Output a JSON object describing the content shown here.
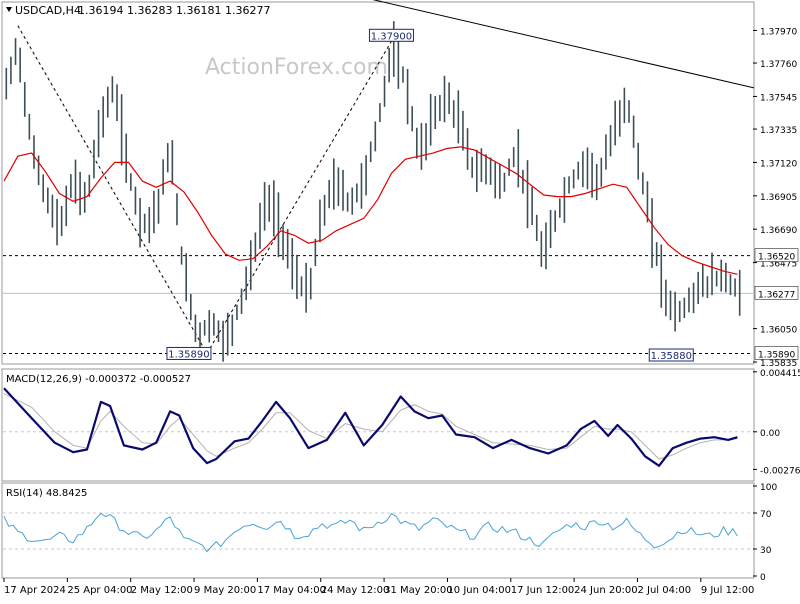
{
  "header": {
    "symbol_timeframe": "USDCAD,H4",
    "ohlc": "1.36194 1.36283 1.36181 1.36277",
    "watermark": "ActionForex.com"
  },
  "colors": {
    "candles": "#3d4f55",
    "moving_average": "#e00000",
    "macd_main": "#0a0a6e",
    "macd_signal": "#b8b0b0",
    "rsi_line": "#4aa3d8",
    "trendline": "#000000",
    "grid_dash": "#000000"
  },
  "chart_data": [
    {
      "type": "line",
      "name": "price",
      "title": "USDCAD,H4",
      "ylim": [
        1.35835,
        1.3805
      ],
      "y_ticks": [
        "1.37970",
        "1.37760",
        "1.37545",
        "1.37335",
        "1.37120",
        "1.36905",
        "1.36690",
        "1.36475",
        "1.36050",
        "1.35835"
      ],
      "x_ticks": [
        "17 Apr 2024",
        "25 Apr 04:00",
        "2 May 12:00",
        "9 May 20:00",
        "17 May 04:00",
        "24 May 12:00",
        "31 May 20:00",
        "10 Jun 04:00",
        "17 Jun 12:00",
        "24 Jun 20:00",
        "2 Jul 04:00",
        "9 Jul 12:00"
      ],
      "price_path": [
        [
          0,
          1.3755
        ],
        [
          3,
          1.3788
        ],
        [
          6,
          1.3722
        ],
        [
          9,
          1.3692
        ],
        [
          12,
          1.3668
        ],
        [
          15,
          1.37
        ],
        [
          18,
          1.3688
        ],
        [
          21,
          1.374
        ],
        [
          24,
          1.376
        ],
        [
          27,
          1.3705
        ],
        [
          30,
          1.3672
        ],
        [
          33,
          1.368
        ],
        [
          36,
          1.3722
        ],
        [
          39,
          1.364
        ],
        [
          42,
          1.36
        ],
        [
          45,
          1.361
        ],
        [
          48,
          1.3595
        ],
        [
          51,
          1.362
        ],
        [
          54,
          1.365
        ],
        [
          57,
          1.369
        ],
        [
          60,
          1.367
        ],
        [
          63,
          1.364
        ],
        [
          66,
          1.3625
        ],
        [
          69,
          1.368
        ],
        [
          72,
          1.37
        ],
        [
          75,
          1.3685
        ],
        [
          78,
          1.37
        ],
        [
          81,
          1.3735
        ],
        [
          84,
          1.3785
        ],
        [
          87,
          1.3765
        ],
        [
          90,
          1.3715
        ],
        [
          93,
          1.3742
        ],
        [
          96,
          1.3755
        ],
        [
          99,
          1.3735
        ],
        [
          102,
          1.3705
        ],
        [
          105,
          1.371
        ],
        [
          108,
          1.3695
        ],
        [
          111,
          1.372
        ],
        [
          114,
          1.3685
        ],
        [
          117,
          1.365
        ],
        [
          120,
          1.368
        ],
        [
          123,
          1.37
        ],
        [
          126,
          1.3712
        ],
        [
          129,
          1.37
        ],
        [
          132,
          1.373
        ],
        [
          135,
          1.3755
        ],
        [
          138,
          1.3705
        ],
        [
          141,
          1.366
        ],
        [
          144,
          1.362
        ],
        [
          147,
          1.3615
        ],
        [
          150,
          1.363
        ],
        [
          153,
          1.3635
        ],
        [
          156,
          1.364
        ],
        [
          159,
          1.3628
        ]
      ],
      "moving_average": [
        [
          0,
          1.37
        ],
        [
          3,
          1.3716
        ],
        [
          6,
          1.3718
        ],
        [
          9,
          1.3706
        ],
        [
          12,
          1.3692
        ],
        [
          15,
          1.3687
        ],
        [
          18,
          1.369
        ],
        [
          21,
          1.3702
        ],
        [
          24,
          1.3712
        ],
        [
          27,
          1.3712
        ],
        [
          30,
          1.37
        ],
        [
          33,
          1.3696
        ],
        [
          36,
          1.37
        ],
        [
          39,
          1.3693
        ],
        [
          42,
          1.368
        ],
        [
          45,
          1.3665
        ],
        [
          48,
          1.3653
        ],
        [
          51,
          1.3649
        ],
        [
          54,
          1.365
        ],
        [
          57,
          1.3658
        ],
        [
          60,
          1.3668
        ],
        [
          63,
          1.3665
        ],
        [
          66,
          1.366
        ],
        [
          69,
          1.3662
        ],
        [
          72,
          1.3668
        ],
        [
          75,
          1.3672
        ],
        [
          78,
          1.3676
        ],
        [
          81,
          1.3688
        ],
        [
          84,
          1.3705
        ],
        [
          87,
          1.3714
        ],
        [
          90,
          1.3716
        ],
        [
          93,
          1.3718
        ],
        [
          96,
          1.3721
        ],
        [
          99,
          1.3722
        ],
        [
          102,
          1.372
        ],
        [
          105,
          1.3715
        ],
        [
          108,
          1.371
        ],
        [
          111,
          1.3705
        ],
        [
          114,
          1.3698
        ],
        [
          117,
          1.3691
        ],
        [
          120,
          1.369
        ],
        [
          123,
          1.369
        ],
        [
          126,
          1.3692
        ],
        [
          129,
          1.3695
        ],
        [
          132,
          1.3698
        ],
        [
          135,
          1.3696
        ],
        [
          138,
          1.3683
        ],
        [
          141,
          1.367
        ],
        [
          144,
          1.3659
        ],
        [
          147,
          1.3652
        ],
        [
          150,
          1.3648
        ],
        [
          153,
          1.3645
        ],
        [
          156,
          1.3642
        ],
        [
          159,
          1.364
        ]
      ],
      "annotations": [
        {
          "label": "1.37900",
          "x_index": 84,
          "price": 1.379
        },
        {
          "label": "1.35890",
          "x_index": 44,
          "price": 1.3589
        },
        {
          "label": "1.35880",
          "x_index": 149,
          "price": 1.3588
        }
      ],
      "dashed_levels": [
        {
          "label": "1.36520",
          "price": 1.3652
        },
        {
          "label": "1.35890",
          "price": 1.3589
        }
      ],
      "current_price": {
        "label": "1.36277",
        "price": 1.36277
      },
      "trendline": {
        "from": [
          42,
          1.3843
        ],
        "to": [
          160,
          1.376
        ]
      },
      "diagonal_dashes": [
        {
          "from": [
            3,
            1.38
          ],
          "to": [
            44,
            1.3589
          ]
        },
        {
          "from": [
            44,
            1.3589
          ],
          "to": [
            84,
            1.379
          ]
        }
      ]
    },
    {
      "type": "line",
      "name": "MACD",
      "title": "MACD(12,26,9) -0.000372 -0.000527",
      "ylim": [
        -0.0034,
        0.0044
      ],
      "y_ticks": [
        "0.004415",
        "0.00",
        "-0.002766"
      ],
      "main": [
        [
          0,
          0.0032
        ],
        [
          6,
          0.001
        ],
        [
          11,
          -0.0008
        ],
        [
          15,
          -0.0015
        ],
        [
          18,
          -0.0013
        ],
        [
          21,
          0.0022
        ],
        [
          23,
          0.0019
        ],
        [
          26,
          -0.001
        ],
        [
          30,
          -0.0013
        ],
        [
          33,
          -0.0008
        ],
        [
          36,
          0.0015
        ],
        [
          38,
          0.0012
        ],
        [
          41,
          -0.0012
        ],
        [
          44,
          -0.0023
        ],
        [
          46,
          -0.002
        ],
        [
          50,
          -0.0007
        ],
        [
          53,
          -0.0005
        ],
        [
          56,
          0.0008
        ],
        [
          59,
          0.0022
        ],
        [
          62,
          0.001
        ],
        [
          66,
          -0.0012
        ],
        [
          70,
          -0.0006
        ],
        [
          74,
          0.0014
        ],
        [
          78,
          -0.001
        ],
        [
          82,
          0.0005
        ],
        [
          86,
          0.0026
        ],
        [
          89,
          0.0015
        ],
        [
          92,
          0.001
        ],
        [
          95,
          0.0012
        ],
        [
          98,
          -0.0002
        ],
        [
          102,
          -0.0004
        ],
        [
          106,
          -0.0012
        ],
        [
          110,
          -0.0006
        ],
        [
          114,
          -0.0012
        ],
        [
          118,
          -0.0016
        ],
        [
          122,
          -0.001
        ],
        [
          125,
          0.0002
        ],
        [
          128,
          0.0008
        ],
        [
          131,
          -0.0003
        ],
        [
          133,
          0.0005
        ],
        [
          136,
          -0.0005
        ],
        [
          139,
          -0.0018
        ],
        [
          142,
          -0.0025
        ],
        [
          145,
          -0.0012
        ],
        [
          148,
          -0.0008
        ],
        [
          151,
          -0.0005
        ],
        [
          154,
          -0.0004
        ],
        [
          157,
          -0.0006
        ],
        [
          159,
          -0.0004
        ]
      ],
      "signal": [
        [
          0,
          0.0028
        ],
        [
          6,
          0.0018
        ],
        [
          11,
          0.0
        ],
        [
          15,
          -0.001
        ],
        [
          18,
          -0.0012
        ],
        [
          21,
          0.0008
        ],
        [
          23,
          0.0015
        ],
        [
          26,
          0.0004
        ],
        [
          30,
          -0.0008
        ],
        [
          33,
          -0.0009
        ],
        [
          36,
          0.0004
        ],
        [
          38,
          0.001
        ],
        [
          41,
          -0.0002
        ],
        [
          44,
          -0.0014
        ],
        [
          46,
          -0.0018
        ],
        [
          50,
          -0.0012
        ],
        [
          53,
          -0.0008
        ],
        [
          56,
          0.0002
        ],
        [
          59,
          0.0014
        ],
        [
          62,
          0.0014
        ],
        [
          66,
          0.0001
        ],
        [
          70,
          -0.0005
        ],
        [
          74,
          0.0006
        ],
        [
          78,
          0.0002
        ],
        [
          82,
          0.0
        ],
        [
          86,
          0.0016
        ],
        [
          89,
          0.002
        ],
        [
          92,
          0.0015
        ],
        [
          95,
          0.0013
        ],
        [
          98,
          0.0004
        ],
        [
          102,
          -0.0002
        ],
        [
          106,
          -0.0008
        ],
        [
          110,
          -0.0009
        ],
        [
          114,
          -0.001
        ],
        [
          118,
          -0.0013
        ],
        [
          122,
          -0.0012
        ],
        [
          125,
          -0.0004
        ],
        [
          128,
          0.0004
        ],
        [
          131,
          0.0002
        ],
        [
          133,
          0.0002
        ],
        [
          136,
          0.0
        ],
        [
          139,
          -0.001
        ],
        [
          142,
          -0.002
        ],
        [
          145,
          -0.0017
        ],
        [
          148,
          -0.0012
        ],
        [
          151,
          -0.0008
        ],
        [
          154,
          -0.0006
        ],
        [
          157,
          -0.0006
        ],
        [
          159,
          -0.0005
        ]
      ]
    },
    {
      "type": "line",
      "name": "RSI",
      "title": "RSI(14) 48.8425",
      "ylim": [
        0,
        100
      ],
      "y_ticks": [
        "100",
        "70",
        "30",
        "0"
      ],
      "levels": [
        70,
        30
      ],
      "values": [
        [
          0,
          62
        ],
        [
          3,
          48
        ],
        [
          6,
          42
        ],
        [
          9,
          38
        ],
        [
          12,
          44
        ],
        [
          15,
          40
        ],
        [
          18,
          52
        ],
        [
          21,
          72
        ],
        [
          24,
          60
        ],
        [
          27,
          48
        ],
        [
          30,
          42
        ],
        [
          33,
          50
        ],
        [
          36,
          65
        ],
        [
          39,
          40
        ],
        [
          42,
          35
        ],
        [
          45,
          30
        ],
        [
          48,
          40
        ],
        [
          51,
          55
        ],
        [
          54,
          60
        ],
        [
          57,
          55
        ],
        [
          60,
          62
        ],
        [
          63,
          45
        ],
        [
          66,
          48
        ],
        [
          69,
          58
        ],
        [
          72,
          55
        ],
        [
          75,
          62
        ],
        [
          78,
          50
        ],
        [
          81,
          60
        ],
        [
          84,
          68
        ],
        [
          87,
          58
        ],
        [
          90,
          52
        ],
        [
          93,
          62
        ],
        [
          96,
          55
        ],
        [
          99,
          48
        ],
        [
          102,
          45
        ],
        [
          105,
          55
        ],
        [
          108,
          52
        ],
        [
          111,
          48
        ],
        [
          114,
          40
        ],
        [
          117,
          35
        ],
        [
          120,
          50
        ],
        [
          123,
          58
        ],
        [
          126,
          55
        ],
        [
          129,
          62
        ],
        [
          132,
          55
        ],
        [
          135,
          60
        ],
        [
          138,
          45
        ],
        [
          141,
          35
        ],
        [
          144,
          40
        ],
        [
          147,
          52
        ],
        [
          150,
          48
        ],
        [
          153,
          44
        ],
        [
          156,
          50
        ],
        [
          159,
          48.8
        ]
      ]
    }
  ]
}
